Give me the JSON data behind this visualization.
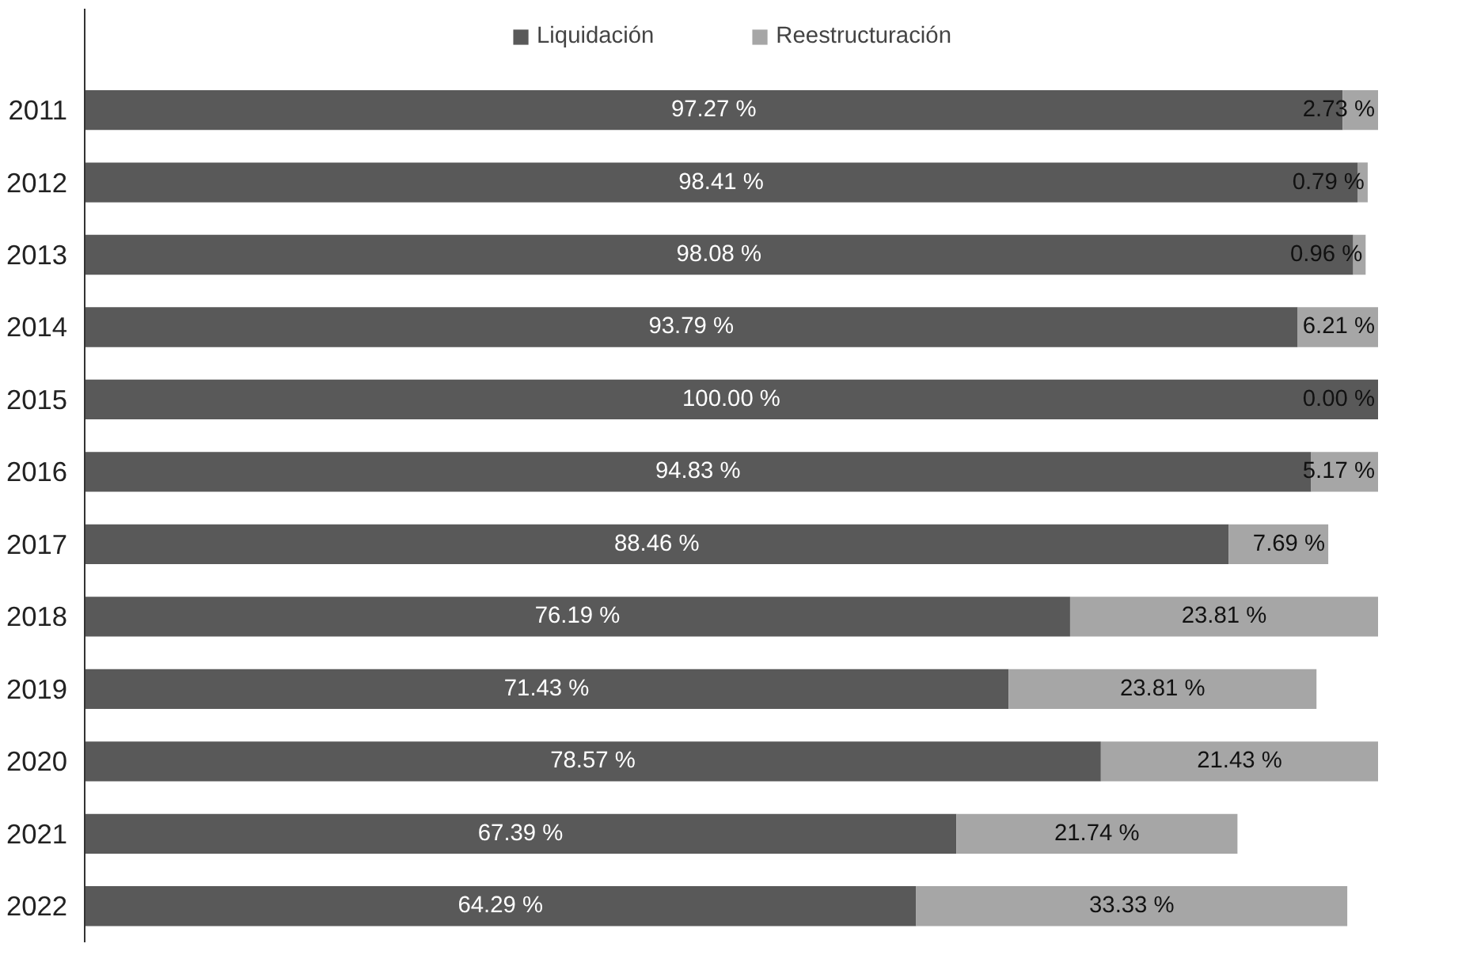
{
  "chart_data": {
    "type": "bar",
    "orientation": "horizontal",
    "stacked": true,
    "categories": [
      "2011",
      "2012",
      "2013",
      "2014",
      "2015",
      "2016",
      "2017",
      "2018",
      "2019",
      "2020",
      "2021",
      "2022"
    ],
    "series": [
      {
        "name": "Liquidación",
        "color": "#595959",
        "values": [
          97.27,
          98.41,
          98.08,
          93.79,
          100.0,
          94.83,
          88.46,
          76.19,
          71.43,
          78.57,
          67.39,
          64.29
        ],
        "value_labels": [
          "97.27 %",
          "98.41 %",
          "98.08 %",
          "93.79 %",
          "100.00 %",
          "94.83 %",
          "88.46 %",
          "76.19 %",
          "71.43 %",
          "78.57 %",
          "67.39 %",
          "64.29 %"
        ]
      },
      {
        "name": "Reestructuración",
        "color": "#a6a6a6",
        "values": [
          2.73,
          0.79,
          0.96,
          6.21,
          0.0,
          5.17,
          7.69,
          23.81,
          23.81,
          21.43,
          21.74,
          33.33
        ],
        "value_labels": [
          "2.73 %",
          "0.79 %",
          "0.96 %",
          "6.21 %",
          "0.00 %",
          "5.17 %",
          "7.69 %",
          "23.81 %",
          "23.81 %",
          "21.43 %",
          "21.74 %",
          "33.33 %"
        ]
      }
    ],
    "xlim": [
      0,
      100
    ],
    "tick_labels": "y",
    "legend": "top",
    "grid": false
  }
}
